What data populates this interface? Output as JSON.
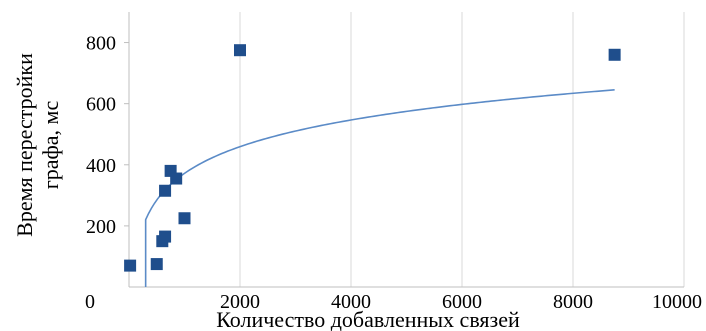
{
  "chart_data": {
    "type": "scatter",
    "title": "",
    "xlabel": "Количество добавленных связей",
    "ylabel_lines": [
      "Время перестройки",
      "графа, мс"
    ],
    "xlim": [
      0,
      10000
    ],
    "ylim": [
      0,
      900
    ],
    "x_ticks": [
      0,
      2000,
      4000,
      6000,
      8000,
      10000
    ],
    "y_ticks": [
      200,
      400,
      600,
      800
    ],
    "x_tick_labels": [
      "0",
      "2000",
      "4000",
      "6000",
      "8000",
      "10000"
    ],
    "y_tick_labels": [
      "200",
      "400",
      "600",
      "800"
    ],
    "grid": "vertical",
    "legend": "none",
    "point_color": "#1f4e8c",
    "trend_color": "#5b8bc7",
    "points": [
      {
        "x": 20,
        "y": 70
      },
      {
        "x": 500,
        "y": 75
      },
      {
        "x": 600,
        "y": 150
      },
      {
        "x": 650,
        "y": 165
      },
      {
        "x": 650,
        "y": 315
      },
      {
        "x": 750,
        "y": 380
      },
      {
        "x": 850,
        "y": 355
      },
      {
        "x": 1000,
        "y": 225
      },
      {
        "x": 2000,
        "y": 775
      },
      {
        "x": 8750,
        "y": 760
      }
    ],
    "trendline": {
      "type": "logarithmic",
      "x_start": 300,
      "x_end": 8750
    }
  }
}
